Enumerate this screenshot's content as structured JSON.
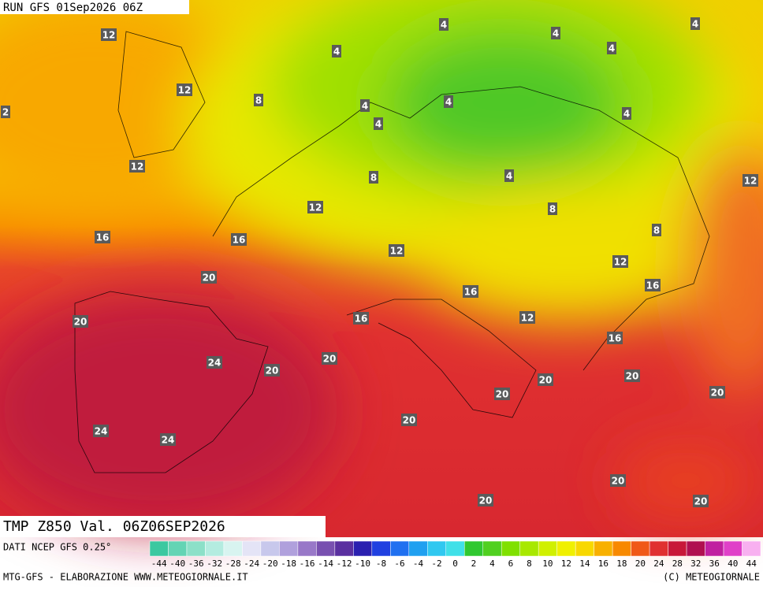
{
  "header": {
    "run": "RUN GFS 01Sep2026 06Z"
  },
  "map": {
    "contour_labels": [
      12,
      4,
      4,
      4,
      4,
      4,
      12,
      8,
      4,
      4,
      2,
      4,
      4,
      12,
      8,
      4,
      12,
      12,
      8,
      8,
      16,
      16,
      12,
      12,
      20,
      16,
      16,
      20,
      16,
      12,
      16,
      20,
      24,
      20,
      20,
      20,
      20,
      20,
      20,
      24,
      24,
      20,
      20,
      20
    ]
  },
  "footer": {
    "title": "TMP Z850 Val. 06Z06SEP2026",
    "source": "DATI NCEP GFS 0.25°",
    "credit": "MTG-GFS - ELABORAZIONE WWW.METEOGIORNALE.IT",
    "copyright": "(C) METEOGIORNALE"
  },
  "scale": {
    "labels": [
      -44,
      -40,
      -36,
      -32,
      -28,
      -24,
      -20,
      -18,
      -16,
      -14,
      -12,
      -10,
      -8,
      -6,
      -4,
      -2,
      0,
      2,
      4,
      6,
      8,
      10,
      12,
      14,
      16,
      18,
      20,
      24,
      28,
      32,
      36,
      40,
      44
    ],
    "colors": [
      "#3cc8a0",
      "#64d4b4",
      "#8ce0c8",
      "#b4ece0",
      "#d8f4f0",
      "#e4e4f6",
      "#c8c8ec",
      "#b0a0dc",
      "#9878c8",
      "#7850b0",
      "#5a30a0",
      "#2a20b0",
      "#2040e0",
      "#2070f0",
      "#20a0f0",
      "#30c8f0",
      "#40e0e8",
      "#30c830",
      "#50d020",
      "#80e000",
      "#a8e800",
      "#d0f000",
      "#f0f000",
      "#f8d800",
      "#f8b000",
      "#f88800",
      "#f05818",
      "#e03030",
      "#c81838",
      "#b01050",
      "#c020a0",
      "#e040c8",
      "#f8b0f0"
    ]
  }
}
